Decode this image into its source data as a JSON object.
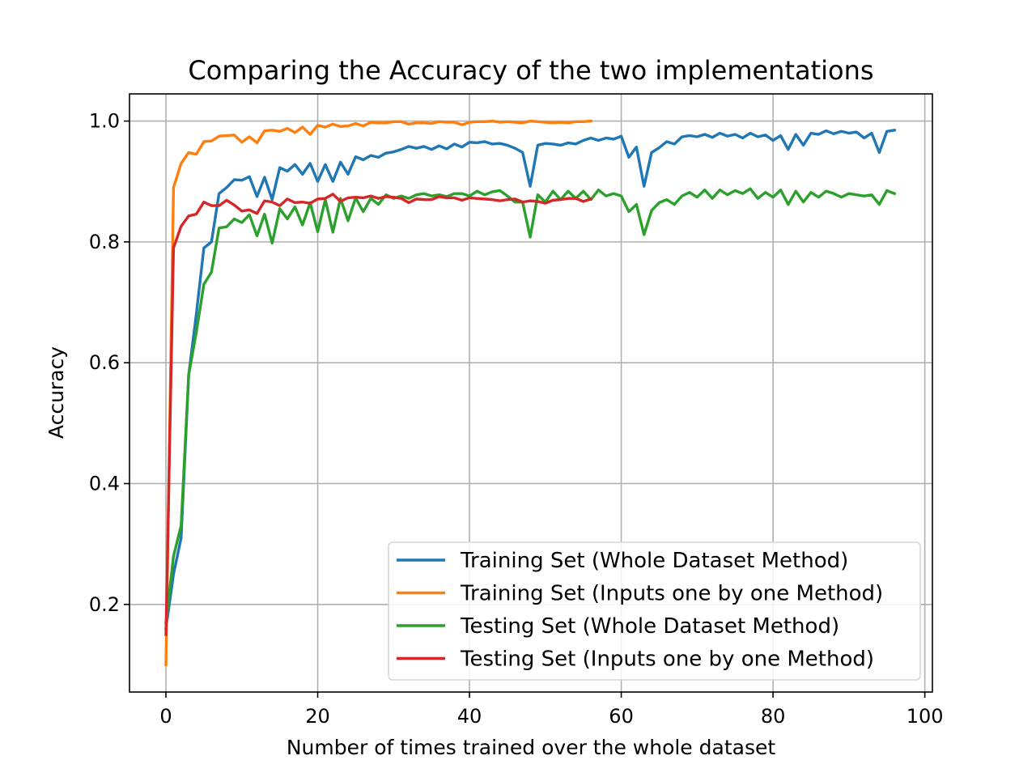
{
  "chart_data": {
    "type": "line",
    "title": "Comparing the Accuracy of the two implementations",
    "xlabel": "Number of times trained over the whole dataset",
    "ylabel": "Accuracy",
    "xlim": [
      -4.8,
      101
    ],
    "ylim": [
      0.055,
      1.045
    ],
    "xticks": [
      0,
      20,
      40,
      60,
      80,
      100
    ],
    "yticks": [
      0.2,
      0.4,
      0.6,
      0.8,
      1.0
    ],
    "xtick_labels": [
      "0",
      "20",
      "40",
      "60",
      "80",
      "100"
    ],
    "ytick_labels": [
      "0.2",
      "0.4",
      "0.6",
      "0.8",
      "1.0"
    ],
    "grid": true,
    "legend_position": "lower-right",
    "series": [
      {
        "name": "Training Set (Whole Dataset Method)",
        "color": "#1f77b4",
        "values": [
          0.16,
          0.25,
          0.31,
          0.58,
          0.68,
          0.79,
          0.8,
          0.88,
          0.89,
          0.903,
          0.902,
          0.908,
          0.875,
          0.907,
          0.87,
          0.923,
          0.917,
          0.928,
          0.912,
          0.93,
          0.9,
          0.928,
          0.9,
          0.932,
          0.912,
          0.941,
          0.936,
          0.943,
          0.94,
          0.947,
          0.949,
          0.953,
          0.958,
          0.955,
          0.958,
          0.953,
          0.959,
          0.954,
          0.962,
          0.957,
          0.965,
          0.964,
          0.966,
          0.962,
          0.963,
          0.96,
          0.955,
          0.948,
          0.892,
          0.96,
          0.963,
          0.962,
          0.96,
          0.964,
          0.962,
          0.968,
          0.972,
          0.968,
          0.972,
          0.97,
          0.975,
          0.94,
          0.957,
          0.892,
          0.948,
          0.956,
          0.966,
          0.962,
          0.974,
          0.976,
          0.974,
          0.978,
          0.973,
          0.98,
          0.975,
          0.978,
          0.972,
          0.98,
          0.974,
          0.977,
          0.968,
          0.976,
          0.953,
          0.978,
          0.96,
          0.98,
          0.978,
          0.984,
          0.979,
          0.983,
          0.98,
          0.982,
          0.972,
          0.98,
          0.948,
          0.983,
          0.985
        ]
      },
      {
        "name": "Training Set (Inputs one by one Method)",
        "color": "#ff7f0e",
        "values": [
          0.1,
          0.89,
          0.93,
          0.948,
          0.945,
          0.966,
          0.967,
          0.975,
          0.976,
          0.977,
          0.965,
          0.974,
          0.964,
          0.984,
          0.985,
          0.983,
          0.988,
          0.981,
          0.99,
          0.978,
          0.993,
          0.99,
          0.995,
          0.991,
          0.992,
          0.996,
          0.992,
          0.998,
          0.997,
          0.997,
          0.999,
          0.999,
          0.995,
          0.997,
          0.997,
          0.996,
          0.999,
          0.998,
          0.998,
          0.994,
          0.998,
          0.999,
          0.999,
          1.0,
          0.998,
          0.999,
          0.998,
          0.997,
          1.0,
          0.999,
          0.998,
          0.997,
          0.998,
          0.997,
          0.999,
          0.999,
          1.0
        ]
      },
      {
        "name": "Testing Set (Whole Dataset Method)",
        "color": "#2ca02c",
        "values": [
          0.17,
          0.28,
          0.33,
          0.58,
          0.65,
          0.73,
          0.75,
          0.823,
          0.825,
          0.838,
          0.832,
          0.845,
          0.81,
          0.846,
          0.798,
          0.855,
          0.838,
          0.858,
          0.828,
          0.865,
          0.817,
          0.87,
          0.816,
          0.872,
          0.835,
          0.873,
          0.85,
          0.872,
          0.862,
          0.878,
          0.872,
          0.876,
          0.872,
          0.878,
          0.88,
          0.876,
          0.878,
          0.875,
          0.88,
          0.88,
          0.876,
          0.884,
          0.878,
          0.883,
          0.885,
          0.876,
          0.866,
          0.866,
          0.808,
          0.878,
          0.866,
          0.884,
          0.87,
          0.884,
          0.872,
          0.884,
          0.87,
          0.886,
          0.876,
          0.88,
          0.876,
          0.85,
          0.862,
          0.812,
          0.852,
          0.865,
          0.87,
          0.862,
          0.876,
          0.882,
          0.874,
          0.886,
          0.872,
          0.886,
          0.878,
          0.885,
          0.88,
          0.888,
          0.872,
          0.882,
          0.874,
          0.886,
          0.862,
          0.884,
          0.866,
          0.882,
          0.874,
          0.884,
          0.88,
          0.874,
          0.88,
          0.878,
          0.876,
          0.878,
          0.862,
          0.885,
          0.88
        ]
      },
      {
        "name": "Testing Set (Inputs one by one Method)",
        "color": "#d62728",
        "values": [
          0.15,
          0.79,
          0.826,
          0.843,
          0.846,
          0.866,
          0.86,
          0.86,
          0.869,
          0.861,
          0.851,
          0.853,
          0.847,
          0.868,
          0.866,
          0.86,
          0.871,
          0.865,
          0.866,
          0.864,
          0.871,
          0.872,
          0.879,
          0.867,
          0.873,
          0.874,
          0.873,
          0.876,
          0.872,
          0.875,
          0.874,
          0.872,
          0.865,
          0.871,
          0.87,
          0.87,
          0.875,
          0.873,
          0.873,
          0.869,
          0.873,
          0.872,
          0.871,
          0.87,
          0.868,
          0.87,
          0.871,
          0.866,
          0.868,
          0.867,
          0.864,
          0.869,
          0.87,
          0.872,
          0.872,
          0.867,
          0.871
        ]
      }
    ]
  }
}
